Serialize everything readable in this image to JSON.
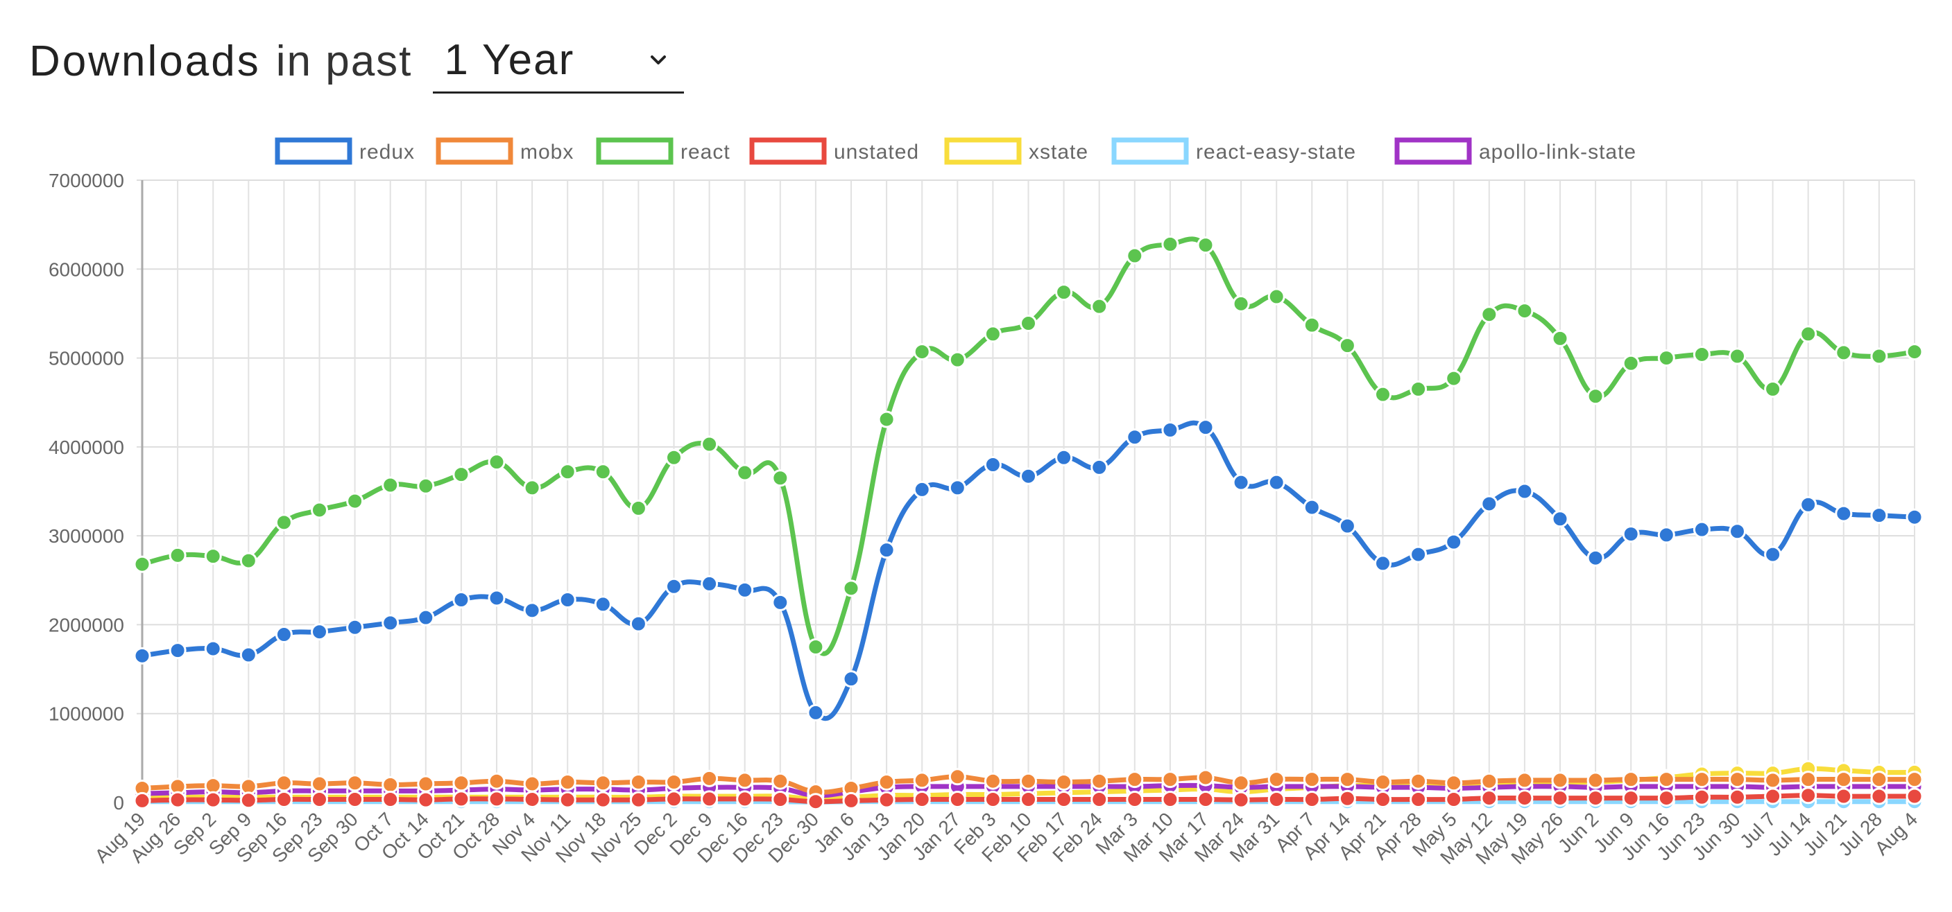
{
  "header": {
    "title": "Downloads",
    "subtitle": "in past",
    "period": {
      "selected": "1 Year"
    }
  },
  "chart_data": {
    "type": "line",
    "title": "",
    "xlabel": "",
    "ylabel": "",
    "ylim": [
      0,
      7000000
    ],
    "y_ticks": [
      "7000000",
      "6000000",
      "5000000",
      "4000000",
      "3000000",
      "2000000",
      "1000000",
      "0"
    ],
    "grid": true,
    "legend_position": "top",
    "categories": [
      "Aug 19",
      "Aug 26",
      "Sep 2",
      "Sep 9",
      "Sep 16",
      "Sep 23",
      "Sep 30",
      "Oct 7",
      "Oct 14",
      "Oct 21",
      "Oct 28",
      "Nov 4",
      "Nov 11",
      "Nov 18",
      "Nov 25",
      "Dec 2",
      "Dec 9",
      "Dec 16",
      "Dec 23",
      "Dec 30",
      "Jan 6",
      "Jan 13",
      "Jan 20",
      "Jan 27",
      "Feb 3",
      "Feb 10",
      "Feb 17",
      "Feb 24",
      "Mar 3",
      "Mar 10",
      "Mar 17",
      "Mar 24",
      "Mar 31",
      "Apr 7",
      "Apr 14",
      "Apr 21",
      "Apr 28",
      "May 5",
      "May 12",
      "May 19",
      "May 26",
      "Jun 2",
      "Jun 9",
      "Jun 16",
      "Jun 23",
      "Jun 30",
      "Jul 7",
      "Jul 14",
      "Jul 21",
      "Jul 28",
      "Aug 4"
    ],
    "series": [
      {
        "name": "redux",
        "color": "#2f78d6",
        "values": [
          1650000,
          1710000,
          1730000,
          1660000,
          1890000,
          1920000,
          1970000,
          2020000,
          2080000,
          2280000,
          2300000,
          2160000,
          2280000,
          2230000,
          2010000,
          2430000,
          2460000,
          2390000,
          2250000,
          1010000,
          1390000,
          2840000,
          3520000,
          3540000,
          3800000,
          3670000,
          3880000,
          3770000,
          4110000,
          4190000,
          4220000,
          3600000,
          3600000,
          3320000,
          3110000,
          2690000,
          2790000,
          2930000,
          3360000,
          3500000,
          3190000,
          2750000,
          3020000,
          3010000,
          3070000,
          3050000,
          2790000,
          3350000,
          3250000,
          3230000,
          3210000
        ]
      },
      {
        "name": "react",
        "color": "#5cc44f",
        "values": [
          2680000,
          2780000,
          2770000,
          2720000,
          3150000,
          3290000,
          3390000,
          3570000,
          3560000,
          3690000,
          3830000,
          3540000,
          3720000,
          3720000,
          3310000,
          3880000,
          4030000,
          3710000,
          3650000,
          1750000,
          2410000,
          4310000,
          5070000,
          4980000,
          5270000,
          5390000,
          5740000,
          5580000,
          6150000,
          6280000,
          6270000,
          5610000,
          5690000,
          5370000,
          5140000,
          4590000,
          4650000,
          4770000,
          5490000,
          5530000,
          5220000,
          4570000,
          4940000,
          5000000,
          5040000,
          5020000,
          4650000,
          5270000,
          5060000,
          5020000,
          5070000
        ]
      },
      {
        "name": "mobx",
        "color": "#f0883a",
        "values": [
          160000,
          180000,
          190000,
          180000,
          220000,
          210000,
          220000,
          200000,
          210000,
          220000,
          240000,
          210000,
          230000,
          220000,
          230000,
          230000,
          270000,
          250000,
          240000,
          120000,
          160000,
          230000,
          250000,
          290000,
          240000,
          240000,
          230000,
          240000,
          260000,
          260000,
          280000,
          220000,
          260000,
          260000,
          260000,
          230000,
          240000,
          220000,
          240000,
          250000,
          250000,
          250000,
          260000,
          260000,
          260000,
          260000,
          250000,
          260000,
          260000,
          260000,
          260000
        ]
      },
      {
        "name": "unstated",
        "color": "#e8493f",
        "values": [
          20000,
          30000,
          30000,
          25000,
          35000,
          35000,
          35000,
          35000,
          30000,
          40000,
          40000,
          35000,
          30000,
          30000,
          30000,
          40000,
          40000,
          40000,
          35000,
          10000,
          20000,
          30000,
          35000,
          35000,
          35000,
          35000,
          35000,
          35000,
          35000,
          35000,
          35000,
          30000,
          35000,
          35000,
          45000,
          35000,
          35000,
          35000,
          50000,
          50000,
          50000,
          50000,
          50000,
          50000,
          60000,
          60000,
          70000,
          80000,
          70000,
          70000,
          70000
        ]
      },
      {
        "name": "xstate",
        "color": "#f8dd3c",
        "values": [
          60000,
          60000,
          60000,
          60000,
          60000,
          60000,
          60000,
          60000,
          60000,
          60000,
          60000,
          60000,
          60000,
          60000,
          60000,
          70000,
          70000,
          70000,
          70000,
          40000,
          60000,
          80000,
          80000,
          90000,
          90000,
          100000,
          110000,
          120000,
          130000,
          140000,
          150000,
          120000,
          150000,
          170000,
          190000,
          190000,
          200000,
          200000,
          210000,
          220000,
          230000,
          230000,
          250000,
          280000,
          320000,
          330000,
          330000,
          380000,
          360000,
          340000,
          340000
        ]
      },
      {
        "name": "react-easy-state",
        "color": "#8ad7ff",
        "values": [
          10000,
          10000,
          10000,
          10000,
          10000,
          10000,
          10000,
          10000,
          10000,
          10000,
          10000,
          10000,
          10000,
          10000,
          10000,
          10000,
          10000,
          10000,
          10000,
          5000,
          10000,
          10000,
          10000,
          10000,
          10000,
          10000,
          10000,
          10000,
          10000,
          10000,
          10000,
          10000,
          10000,
          10000,
          10000,
          10000,
          10000,
          10000,
          10000,
          10000,
          10000,
          10000,
          10000,
          10000,
          10000,
          10000,
          10000,
          10000,
          10000,
          10000,
          10000
        ]
      },
      {
        "name": "apollo-link-state",
        "color": "#a033c6",
        "values": [
          100000,
          110000,
          120000,
          110000,
          130000,
          130000,
          130000,
          130000,
          130000,
          140000,
          150000,
          140000,
          150000,
          150000,
          140000,
          160000,
          170000,
          170000,
          160000,
          80000,
          120000,
          170000,
          180000,
          180000,
          180000,
          180000,
          180000,
          180000,
          180000,
          190000,
          190000,
          170000,
          180000,
          180000,
          180000,
          170000,
          170000,
          160000,
          170000,
          180000,
          180000,
          170000,
          180000,
          180000,
          180000,
          180000,
          170000,
          180000,
          180000,
          180000,
          180000
        ]
      }
    ]
  }
}
